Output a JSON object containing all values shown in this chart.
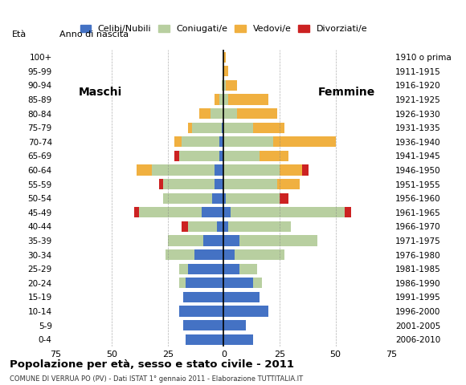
{
  "age_groups": [
    "0-4",
    "5-9",
    "10-14",
    "15-19",
    "20-24",
    "25-29",
    "30-34",
    "35-39",
    "40-44",
    "45-49",
    "50-54",
    "55-59",
    "60-64",
    "65-69",
    "70-74",
    "75-79",
    "80-84",
    "85-89",
    "90-94",
    "95-99",
    "100+"
  ],
  "birth_years": [
    "2006-2010",
    "2001-2005",
    "1996-2000",
    "1991-1995",
    "1986-1990",
    "1981-1985",
    "1976-1980",
    "1971-1975",
    "1966-1970",
    "1961-1965",
    "1956-1960",
    "1951-1955",
    "1946-1950",
    "1941-1945",
    "1936-1940",
    "1931-1935",
    "1926-1930",
    "1921-1925",
    "1916-1920",
    "1911-1915",
    "1910 o prima"
  ],
  "males": {
    "celibi": [
      17,
      18,
      20,
      18,
      17,
      16,
      13,
      9,
      3,
      10,
      5,
      4,
      4,
      2,
      2,
      1,
      0,
      0,
      0,
      0,
      0
    ],
    "coniugati": [
      0,
      0,
      0,
      0,
      3,
      4,
      13,
      16,
      13,
      28,
      22,
      23,
      28,
      18,
      17,
      13,
      6,
      2,
      1,
      0,
      0
    ],
    "vedovi": [
      0,
      0,
      0,
      0,
      0,
      0,
      0,
      0,
      0,
      0,
      0,
      0,
      7,
      0,
      3,
      2,
      5,
      2,
      0,
      0,
      0
    ],
    "divorziati": [
      0,
      0,
      0,
      0,
      0,
      0,
      0,
      0,
      3,
      2,
      0,
      2,
      0,
      2,
      0,
      0,
      0,
      0,
      0,
      0,
      0
    ]
  },
  "females": {
    "celibi": [
      13,
      10,
      20,
      16,
      13,
      7,
      5,
      7,
      2,
      3,
      1,
      0,
      0,
      0,
      0,
      0,
      0,
      0,
      0,
      0,
      0
    ],
    "coniugati": [
      0,
      0,
      0,
      0,
      4,
      8,
      22,
      35,
      28,
      51,
      24,
      24,
      25,
      16,
      22,
      13,
      6,
      2,
      1,
      0,
      0
    ],
    "vedovi": [
      0,
      0,
      0,
      0,
      0,
      0,
      0,
      0,
      0,
      0,
      0,
      10,
      10,
      13,
      28,
      14,
      18,
      18,
      5,
      2,
      1
    ],
    "divorziati": [
      0,
      0,
      0,
      0,
      0,
      0,
      0,
      0,
      0,
      3,
      4,
      0,
      3,
      0,
      0,
      0,
      0,
      0,
      0,
      0,
      0
    ]
  },
  "colors": {
    "celibi": "#4472c4",
    "coniugati": "#b8cfa0",
    "vedovi": "#f0b040",
    "divorziati": "#cc2222"
  },
  "xlim": 75,
  "title": "Popolazione per età, sesso e stato civile - 2011",
  "subtitle": "COMUNE DI VERRUA PO (PV) - Dati ISTAT 1° gennaio 2011 - Elaborazione TUTTITALIA.IT",
  "legend_labels": [
    "Celibi/Nubili",
    "Coniugati/e",
    "Vedovi/e",
    "Divorziati/e"
  ],
  "eta_label": "Età",
  "anno_label": "Anno di nascita",
  "label_maschi": "Maschi",
  "label_femmine": "Femmine"
}
